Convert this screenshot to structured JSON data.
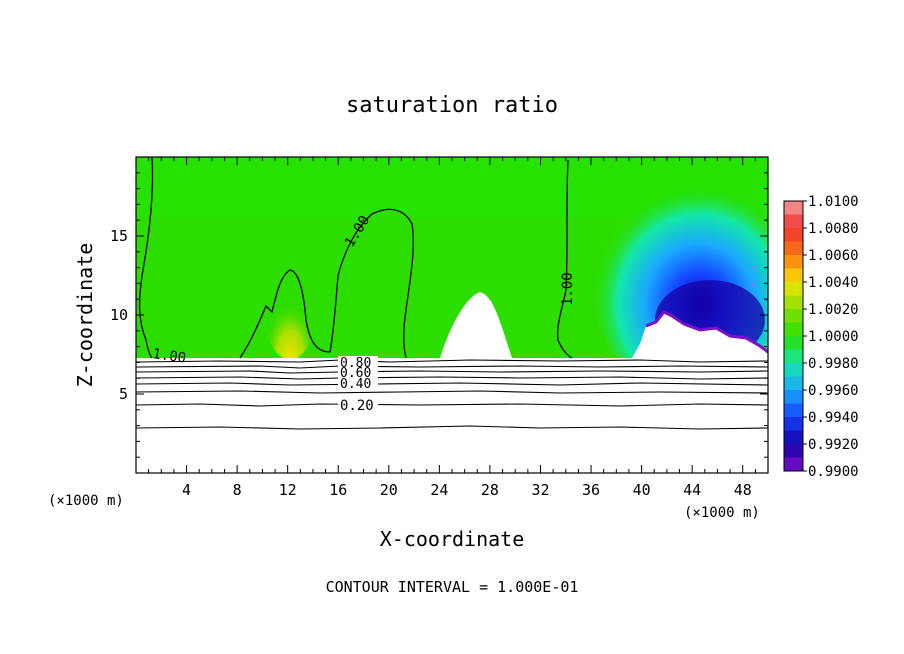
{
  "chart_data": {
    "type": "heatmap",
    "title": "saturation ratio",
    "xlabel": "X-coordinate",
    "ylabel": "Z-coordinate",
    "x_unit_left": "(×1000 m)",
    "x_unit_right": "(×1000 m)",
    "footer": "CONTOUR INTERVAL = 1.000E-01",
    "xlim": [
      0,
      50
    ],
    "ylim": [
      0,
      20
    ],
    "x_ticks": [
      "4",
      "8",
      "12",
      "16",
      "20",
      "24",
      "28",
      "32",
      "36",
      "40",
      "44",
      "48"
    ],
    "x_tick_values": [
      4,
      8,
      12,
      16,
      20,
      24,
      28,
      32,
      36,
      40,
      44,
      48
    ],
    "y_ticks": [
      "5",
      "10",
      "15"
    ],
    "y_tick_values": [
      5,
      10,
      15
    ],
    "colorbar": {
      "ticks": [
        "1.0100",
        "1.0080",
        "1.0060",
        "1.0040",
        "1.0020",
        "1.0000",
        "0.9980",
        "0.9960",
        "0.9940",
        "0.9920",
        "0.9900"
      ],
      "colors": [
        "#f4a0a0",
        "#f03030",
        "#fb7a12",
        "#f5e200",
        "#88e000",
        "#2cde00",
        "#14e8a8",
        "#1aa8ff",
        "#1444ff",
        "#1400a8",
        "#8010c8"
      ]
    },
    "contour_labels": [
      "1.00",
      "1.00",
      "1.00",
      "0.80",
      "0.60",
      "0.40",
      "0.20"
    ],
    "contour_lines_lower": [
      {
        "label": "0.20",
        "z": 4.2
      },
      {
        "label": "0.40",
        "z": 5.5
      },
      {
        "label": "0.60",
        "z": 6.3
      },
      {
        "label": "0.80",
        "z": 6.9
      }
    ]
  }
}
